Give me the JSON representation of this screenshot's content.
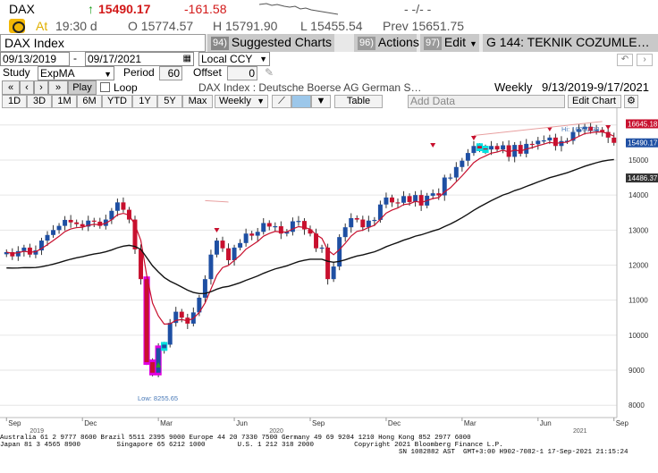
{
  "ticker": {
    "name": "DAX",
    "direction_icon": "up-arrow-icon",
    "last": "15490.17",
    "change": "-161.58",
    "time_label": "At",
    "time": "19:30 d",
    "open": "O 15774.57",
    "high": "H 15791.90",
    "low": "L 15455.54",
    "prev": "Prev  15651.75",
    "dash_placeholder": "- -/- -"
  },
  "toolbar": {
    "security": "DAX Index",
    "suggested_num": "94)",
    "suggested": "Suggested Charts",
    "actions_num": "96)",
    "actions": "Actions",
    "edit_num": "97)",
    "edit": "Edit",
    "function": "G 144: TEKNIK COZUMLE…"
  },
  "dates": {
    "start": "09/13/2019",
    "end": "09/17/2021",
    "currency": "Local CCY"
  },
  "study": {
    "label": "Study",
    "value": "ExpMA",
    "period_label": "Period",
    "period": "60",
    "offset_label": "Offset",
    "offset": "0"
  },
  "playback": {
    "play": "Play",
    "loop": "Loop",
    "title": "DAX Index : Deutsche Boerse AG German S…",
    "frequency": "Weekly",
    "range": "9/13/2019-9/17/2021"
  },
  "chart_toolbar": {
    "buttons": [
      "1D",
      "3D",
      "1M",
      "6M",
      "YTD",
      "1Y",
      "5Y",
      "Max"
    ],
    "period_select": "Weekly",
    "table": "Table",
    "add_data_placeholder": "Add Data",
    "edit_chart": "Edit Chart"
  },
  "chart_data": {
    "type": "candlestick",
    "frequency": "weekly",
    "ylim": [
      7700,
      16300
    ],
    "y_ticks": [
      8000,
      9000,
      10000,
      11000,
      12000,
      13000,
      14000,
      15000,
      16000
    ],
    "x_month_labels": [
      "Sep",
      "Dec",
      "Mar",
      "Jun",
      "Sep",
      "Dec",
      "Mar",
      "Jun",
      "Sep"
    ],
    "x_year_labels": [
      "2019",
      "2020",
      "2021"
    ],
    "hi_label": "Hi: 16030.33",
    "low_label": "Low: 8255.65",
    "price_tags": [
      "16645.18",
      "15490.17",
      "14486.37"
    ],
    "series_close": [
      12370,
      12250,
      12400,
      12500,
      12300,
      12420,
      12700,
      12860,
      13000,
      13120,
      13290,
      13220,
      13170,
      13100,
      13270,
      13240,
      13120,
      13300,
      13550,
      13790,
      13580,
      13300,
      12450,
      11600,
      9230,
      8930,
      9630,
      9730,
      10350,
      10670,
      10500,
      10330,
      10650,
      11070,
      11600,
      12300,
      12700,
      12480,
      12140,
      12500,
      12630,
      12900,
      12840,
      12950,
      13200,
      13100,
      13110,
      12900,
      12950,
      13250,
      13260,
      13020,
      12900,
      12480,
      12500,
      11600,
      11960,
      12800,
      13080,
      13340,
      13300,
      13080,
      13270,
      13290,
      13730,
      13930,
      13790,
      13780,
      13970,
      13800,
      14000,
      13700,
      13980,
      14050,
      13990,
      14500,
      14500,
      14800,
      14980,
      15200,
      15400,
      15330,
      15300,
      15400,
      15300,
      15420,
      15090,
      15430,
      15180,
      15460,
      15450,
      15550,
      15560,
      15640,
      15400,
      15540,
      15550,
      15800,
      15880,
      15950,
      15830,
      15860,
      15800,
      15640,
      15490
    ],
    "series_ema_short": "14-week moving average (red)",
    "series_ema_long": "60-week exponential moving average (black)"
  },
  "footer": {
    "line1": "Australia 61 2 9777 8600 Brazil 5511 2395 9000 Europe 44 20 7330 7500 Germany 49 69 9204 1210 Hong Kong 852 2977 6000",
    "line2": "Japan 81 3 4565 8900         Singapore 65 6212 1000        U.S. 1 212 318 2000          Copyright 2021 Bloomberg Finance L.P.",
    "line3": "SN 1082882 AST  GMT+3:00 H902-7082-1 17-Sep-2021 21:15:24"
  },
  "colors": {
    "up": "#1e4fa3",
    "down": "#c8102e",
    "highlight_pink": "#e000e0",
    "highlight_cyan": "#00e0e0",
    "ma_short": "#c8102e",
    "ma_long": "#000000",
    "chg": "#d21818"
  }
}
